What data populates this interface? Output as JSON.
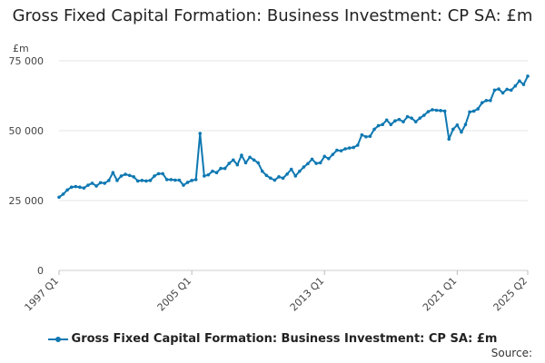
{
  "chart_data": {
    "type": "line",
    "title": "Gross Fixed Capital Formation: Business Investment: CP SA: £m",
    "ylabel": "£m",
    "ylim": [
      0,
      75000
    ],
    "yticks": [
      "0",
      "25 000",
      "50 000",
      "75 000"
    ],
    "ytick_values": [
      0,
      25000,
      50000,
      75000
    ],
    "xtick_labels": [
      "1997 Q1",
      "2005 Q1",
      "2013 Q1",
      "2021 Q1",
      "2025 Q2"
    ],
    "xtick_indices": [
      0,
      32,
      64,
      96,
      113
    ],
    "legend": "Gross Fixed Capital Formation: Business Investment: CP SA: £m",
    "color": "#0e78b2",
    "series": [
      {
        "name": "Gross Fixed Capital Formation: Business Investment: CP SA: £m",
        "x": [
          "1997 Q1",
          "1997 Q2",
          "1997 Q3",
          "1997 Q4",
          "1998 Q1",
          "1998 Q2",
          "1998 Q3",
          "1998 Q4",
          "1999 Q1",
          "1999 Q2",
          "1999 Q3",
          "1999 Q4",
          "2000 Q1",
          "2000 Q2",
          "2000 Q3",
          "2000 Q4",
          "2001 Q1",
          "2001 Q2",
          "2001 Q3",
          "2001 Q4",
          "2002 Q1",
          "2002 Q2",
          "2002 Q3",
          "2002 Q4",
          "2003 Q1",
          "2003 Q2",
          "2003 Q3",
          "2003 Q4",
          "2004 Q1",
          "2004 Q2",
          "2004 Q3",
          "2004 Q4",
          "2005 Q1",
          "2005 Q2",
          "2005 Q3",
          "2005 Q4",
          "2006 Q1",
          "2006 Q2",
          "2006 Q3",
          "2006 Q4",
          "2007 Q1",
          "2007 Q2",
          "2007 Q3",
          "2007 Q4",
          "2008 Q1",
          "2008 Q2",
          "2008 Q3",
          "2008 Q4",
          "2009 Q1",
          "2009 Q2",
          "2009 Q3",
          "2009 Q4",
          "2010 Q1",
          "2010 Q2",
          "2010 Q3",
          "2010 Q4",
          "2011 Q1",
          "2011 Q2",
          "2011 Q3",
          "2011 Q4",
          "2012 Q1",
          "2012 Q2",
          "2012 Q3",
          "2012 Q4",
          "2013 Q1",
          "2013 Q2",
          "2013 Q3",
          "2013 Q4",
          "2014 Q1",
          "2014 Q2",
          "2014 Q3",
          "2014 Q4",
          "2015 Q1",
          "2015 Q2",
          "2015 Q3",
          "2015 Q4",
          "2016 Q1",
          "2016 Q2",
          "2016 Q3",
          "2016 Q4",
          "2017 Q1",
          "2017 Q2",
          "2017 Q3",
          "2017 Q4",
          "2018 Q1",
          "2018 Q2",
          "2018 Q3",
          "2018 Q4",
          "2019 Q1",
          "2019 Q2",
          "2019 Q3",
          "2019 Q4",
          "2020 Q1",
          "2020 Q2",
          "2020 Q3",
          "2020 Q4",
          "2021 Q1",
          "2021 Q2",
          "2021 Q3",
          "2021 Q4",
          "2022 Q1",
          "2022 Q2",
          "2022 Q3",
          "2022 Q4",
          "2023 Q1",
          "2023 Q2",
          "2023 Q3",
          "2023 Q4",
          "2024 Q1",
          "2024 Q2",
          "2024 Q3",
          "2024 Q4",
          "2025 Q1",
          "2025 Q2"
        ],
        "values": [
          26200,
          27300,
          28800,
          29800,
          30000,
          29800,
          29500,
          30500,
          31200,
          30200,
          31400,
          31200,
          32200,
          35000,
          32200,
          33800,
          34400,
          34000,
          33500,
          32000,
          32200,
          32000,
          32200,
          33800,
          34600,
          34600,
          32500,
          32500,
          32300,
          32300,
          30500,
          31500,
          32200,
          32500,
          49000,
          33800,
          34200,
          35500,
          35000,
          36500,
          36500,
          38300,
          39500,
          37800,
          41200,
          38500,
          40500,
          39500,
          38500,
          35500,
          34000,
          33000,
          32300,
          33500,
          33000,
          34500,
          36200,
          33800,
          35500,
          37000,
          38200,
          39800,
          38300,
          38500,
          40800,
          40000,
          41500,
          43000,
          42800,
          43500,
          43800,
          44000,
          44800,
          48500,
          47800,
          48000,
          50500,
          51800,
          52200,
          53800,
          52200,
          53500,
          54000,
          53200,
          55000,
          54500,
          53200,
          54500,
          55500,
          56800,
          57500,
          57300,
          57200,
          57000,
          47000,
          50500,
          52000,
          49500,
          52200,
          56700,
          57000,
          57800,
          60000,
          60800,
          60800,
          64500,
          64900,
          63500,
          64800,
          64500,
          66000,
          67800,
          66500,
          69500
        ]
      }
    ]
  },
  "footer": {
    "source_label": "Source:"
  }
}
